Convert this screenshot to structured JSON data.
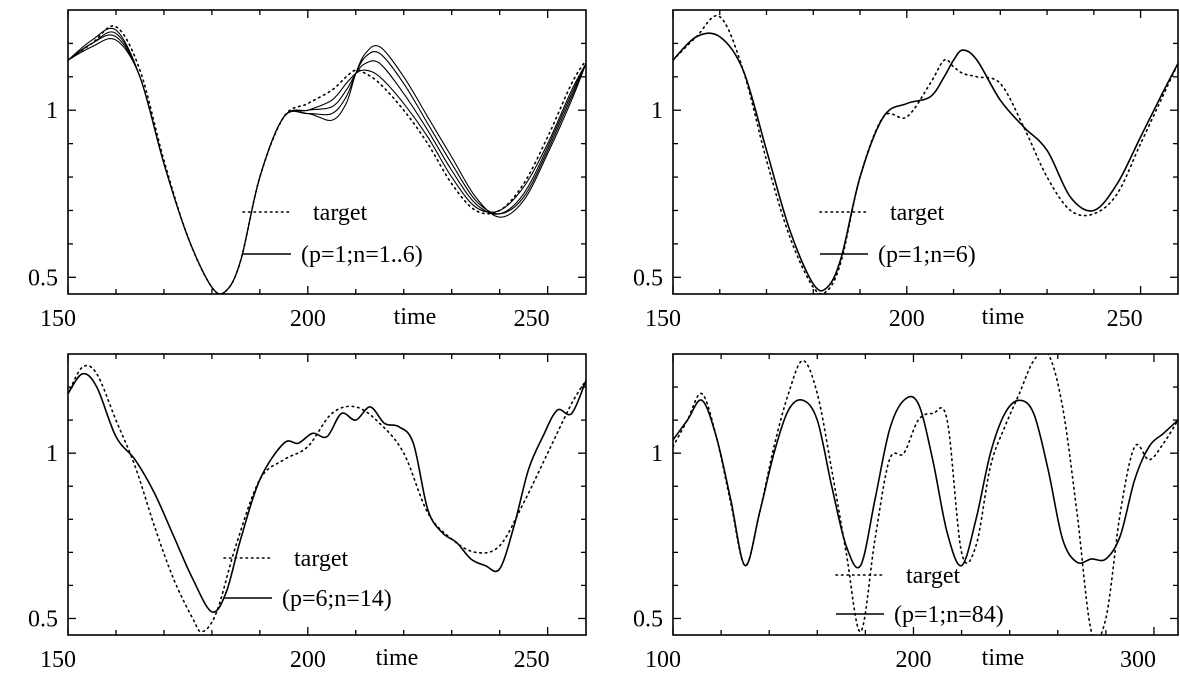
{
  "chart_data": [
    {
      "type": "line",
      "title": "",
      "xlabel": "time",
      "ylabel": "",
      "xlim": [
        150,
        258
      ],
      "ylim": [
        0.45,
        1.3
      ],
      "xticks": [
        150,
        200,
        250
      ],
      "xtick_labels": [
        "150",
        "200",
        "250"
      ],
      "yticks": [
        0.5,
        1
      ],
      "ytick_labels": [
        "0.5",
        "1"
      ],
      "grid": false,
      "legend_position": "bottom-right",
      "series": [
        {
          "name": "target",
          "style": "dotted",
          "x": [
            150,
            155,
            160,
            165,
            170,
            175,
            180,
            183,
            186,
            190,
            195,
            200,
            205,
            208,
            210,
            212,
            215,
            220,
            225,
            230,
            235,
            240,
            245,
            250,
            255,
            258
          ],
          "y": [
            1.15,
            1.2,
            1.25,
            1.12,
            0.85,
            0.62,
            0.47,
            0.46,
            0.55,
            0.8,
            0.98,
            1.02,
            1.06,
            1.1,
            1.12,
            1.11,
            1.08,
            1.0,
            0.9,
            0.78,
            0.7,
            0.7,
            0.78,
            0.92,
            1.08,
            1.15
          ]
        },
        {
          "name": "(p=1;n=1..6)",
          "style": "solid",
          "x": [
            150,
            155,
            160,
            165,
            170,
            175,
            180,
            183,
            186,
            190,
            195,
            200,
            205,
            208,
            210,
            212,
            215,
            220,
            225,
            230,
            235,
            240,
            245,
            250,
            255,
            258
          ],
          "y": [
            1.15,
            1.21,
            1.24,
            1.1,
            0.84,
            0.62,
            0.47,
            0.46,
            0.55,
            0.8,
            0.98,
            1.0,
            1.03,
            1.08,
            1.11,
            1.12,
            1.1,
            1.02,
            0.92,
            0.8,
            0.71,
            0.7,
            0.77,
            0.9,
            1.06,
            1.14
          ]
        }
      ],
      "extra_trajectories": [
        {
          "x": [
            150,
            155,
            160,
            165,
            170,
            175,
            180,
            183,
            186,
            190,
            195,
            200,
            205,
            208,
            210,
            212,
            215,
            220,
            225,
            230,
            235,
            240,
            245,
            250,
            255,
            258
          ],
          "y": [
            1.15,
            1.2,
            1.23,
            1.1,
            0.84,
            0.62,
            0.47,
            0.46,
            0.55,
            0.8,
            0.98,
            1.0,
            1.01,
            1.06,
            1.11,
            1.14,
            1.14,
            1.05,
            0.94,
            0.82,
            0.72,
            0.69,
            0.75,
            0.89,
            1.05,
            1.14
          ]
        },
        {
          "x": [
            150,
            155,
            160,
            165,
            170,
            175,
            180,
            183,
            186,
            190,
            195,
            200,
            205,
            208,
            210,
            212,
            215,
            220,
            225,
            230,
            235,
            240,
            245,
            250,
            255,
            258
          ],
          "y": [
            1.15,
            1.2,
            1.22,
            1.1,
            0.84,
            0.62,
            0.47,
            0.46,
            0.55,
            0.8,
            0.98,
            0.99,
            0.99,
            1.04,
            1.11,
            1.16,
            1.17,
            1.08,
            0.96,
            0.84,
            0.73,
            0.69,
            0.74,
            0.88,
            1.04,
            1.14
          ]
        },
        {
          "x": [
            150,
            155,
            160,
            165,
            170,
            175,
            180,
            183,
            186,
            190,
            195,
            200,
            205,
            208,
            210,
            212,
            215,
            220,
            225,
            230,
            235,
            240,
            245,
            250,
            255,
            258
          ],
          "y": [
            1.15,
            1.19,
            1.21,
            1.1,
            0.84,
            0.62,
            0.47,
            0.46,
            0.55,
            0.8,
            0.98,
            0.99,
            0.97,
            1.02,
            1.11,
            1.17,
            1.19,
            1.1,
            0.98,
            0.86,
            0.74,
            0.68,
            0.73,
            0.87,
            1.03,
            1.14
          ]
        }
      ]
    },
    {
      "type": "line",
      "title": "",
      "xlabel": "time",
      "ylabel": "",
      "xlim": [
        150,
        258
      ],
      "ylim": [
        0.45,
        1.3
      ],
      "xticks": [
        150,
        200,
        250
      ],
      "xtick_labels": [
        "150",
        "200",
        "250"
      ],
      "yticks": [
        0.5,
        1
      ],
      "ytick_labels": [
        "0.5",
        "1"
      ],
      "grid": false,
      "legend_position": "bottom-right",
      "series": [
        {
          "name": "target",
          "style": "dotted",
          "x": [
            150,
            155,
            160,
            165,
            170,
            175,
            180,
            183,
            186,
            190,
            195,
            200,
            205,
            208,
            210,
            212,
            215,
            220,
            225,
            230,
            235,
            240,
            245,
            250,
            255,
            258
          ],
          "y": [
            1.15,
            1.22,
            1.28,
            1.12,
            0.85,
            0.62,
            0.47,
            0.46,
            0.55,
            0.8,
            0.98,
            0.98,
            1.08,
            1.15,
            1.13,
            1.11,
            1.1,
            1.08,
            0.95,
            0.8,
            0.7,
            0.69,
            0.75,
            0.9,
            1.05,
            1.14
          ]
        },
        {
          "name": "(p=1;n=6)",
          "style": "solid",
          "x": [
            150,
            155,
            160,
            165,
            170,
            175,
            180,
            183,
            186,
            190,
            195,
            200,
            205,
            208,
            210,
            212,
            215,
            220,
            225,
            230,
            235,
            240,
            245,
            250,
            255,
            258
          ],
          "y": [
            1.15,
            1.22,
            1.22,
            1.12,
            0.88,
            0.64,
            0.48,
            0.47,
            0.56,
            0.8,
            0.98,
            1.02,
            1.04,
            1.1,
            1.15,
            1.18,
            1.15,
            1.03,
            0.95,
            0.88,
            0.74,
            0.7,
            0.78,
            0.92,
            1.06,
            1.14
          ]
        }
      ]
    },
    {
      "type": "line",
      "title": "",
      "xlabel": "time",
      "ylabel": "",
      "xlim": [
        150,
        258
      ],
      "ylim": [
        0.45,
        1.3
      ],
      "xticks": [
        150,
        200,
        250
      ],
      "xtick_labels": [
        "150",
        "200",
        "250"
      ],
      "yticks": [
        0.5,
        1
      ],
      "ytick_labels": [
        "0.5",
        "1"
      ],
      "grid": false,
      "legend_position": "bottom-right",
      "series": [
        {
          "name": "target",
          "style": "dotted",
          "x": [
            150,
            153,
            156,
            160,
            164,
            168,
            172,
            176,
            178,
            181,
            185,
            190,
            195,
            200,
            205,
            210,
            215,
            220,
            225,
            230,
            235,
            240,
            245,
            250,
            255,
            258
          ],
          "y": [
            1.18,
            1.26,
            1.24,
            1.1,
            0.96,
            0.78,
            0.62,
            0.5,
            0.46,
            0.52,
            0.72,
            0.92,
            0.98,
            1.02,
            1.12,
            1.14,
            1.09,
            1.0,
            0.82,
            0.74,
            0.7,
            0.72,
            0.85,
            1.0,
            1.15,
            1.22
          ]
        },
        {
          "name": "(p=6;n=14)",
          "style": "solid",
          "x": [
            150,
            153,
            156,
            160,
            164,
            168,
            172,
            176,
            180,
            183,
            186,
            190,
            195,
            198,
            201,
            204,
            207,
            210,
            213,
            216,
            219,
            222,
            225,
            228,
            231,
            234,
            237,
            240,
            243,
            246,
            249,
            252,
            255,
            258
          ],
          "y": [
            1.18,
            1.24,
            1.2,
            1.05,
            0.98,
            0.88,
            0.75,
            0.62,
            0.52,
            0.58,
            0.74,
            0.92,
            1.03,
            1.03,
            1.06,
            1.05,
            1.12,
            1.1,
            1.14,
            1.09,
            1.08,
            1.03,
            0.83,
            0.76,
            0.73,
            0.68,
            0.66,
            0.65,
            0.78,
            0.95,
            1.05,
            1.13,
            1.12,
            1.22
          ]
        }
      ]
    },
    {
      "type": "line",
      "title": "",
      "xlabel": "time",
      "ylabel": "",
      "xlim": [
        100,
        310
      ],
      "ylim": [
        0.45,
        1.3
      ],
      "xticks": [
        100,
        200,
        300
      ],
      "xtick_labels": [
        "100",
        "200",
        "300"
      ],
      "yticks": [
        0.5,
        1
      ],
      "ytick_labels": [
        "0.5",
        "1"
      ],
      "grid": false,
      "legend_position": "bottom-right",
      "series": [
        {
          "name": "target",
          "style": "dotted",
          "x": [
            100,
            106,
            112,
            118,
            124,
            130,
            136,
            142,
            148,
            154,
            160,
            166,
            172,
            178,
            184,
            190,
            196,
            202,
            208,
            214,
            220,
            226,
            232,
            238,
            244,
            250,
            256,
            262,
            268,
            274,
            280,
            286,
            292,
            298,
            304,
            310
          ],
          "y": [
            1.02,
            1.1,
            1.18,
            1.05,
            0.85,
            0.66,
            0.82,
            1.02,
            1.18,
            1.28,
            1.18,
            0.95,
            0.7,
            0.46,
            0.74,
            0.98,
            1.0,
            1.1,
            1.12,
            1.1,
            0.7,
            0.72,
            0.96,
            1.08,
            1.18,
            1.28,
            1.3,
            1.14,
            0.82,
            0.46,
            0.5,
            0.82,
            1.02,
            0.98,
            1.03,
            1.1
          ]
        },
        {
          "name": "(p=1;n=84)",
          "style": "solid",
          "x": [
            100,
            106,
            112,
            118,
            124,
            130,
            136,
            142,
            148,
            154,
            160,
            166,
            172,
            178,
            184,
            190,
            196,
            202,
            208,
            214,
            220,
            226,
            232,
            238,
            244,
            250,
            256,
            262,
            268,
            274,
            280,
            286,
            292,
            298,
            304,
            310
          ],
          "y": [
            1.04,
            1.1,
            1.16,
            1.05,
            0.86,
            0.66,
            0.82,
            1.0,
            1.13,
            1.16,
            1.1,
            0.9,
            0.72,
            0.66,
            0.86,
            1.07,
            1.16,
            1.15,
            0.98,
            0.76,
            0.66,
            0.8,
            1.0,
            1.12,
            1.16,
            1.12,
            0.95,
            0.74,
            0.67,
            0.68,
            0.68,
            0.75,
            0.92,
            1.02,
            1.06,
            1.1
          ]
        }
      ]
    }
  ]
}
